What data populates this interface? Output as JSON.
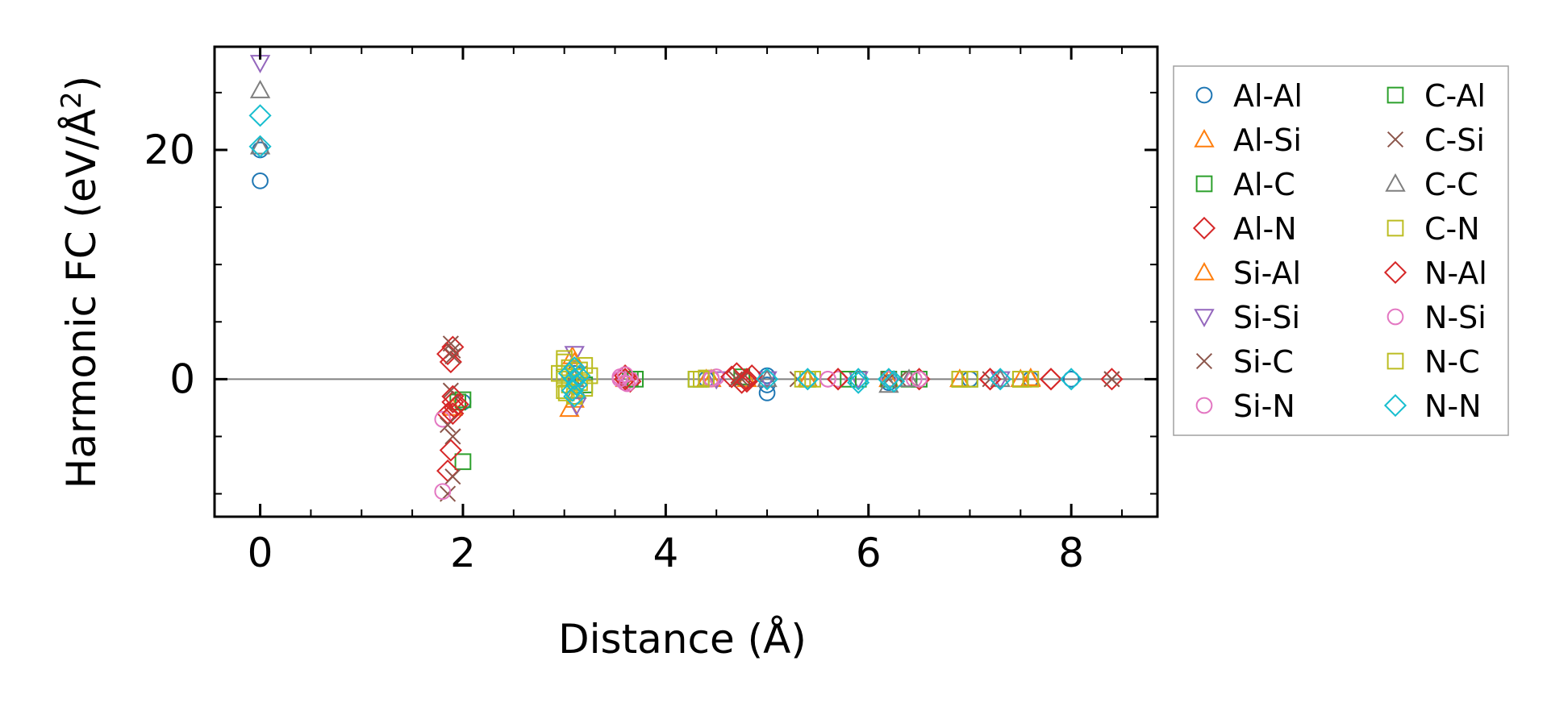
{
  "chart_data": {
    "type": "scatter",
    "title": "",
    "xlabel": "Distance (Å)",
    "ylabel_prefix": "Harmonic FC (eV/Å",
    "ylabel_sup": "2",
    "ylabel_suffix": ")",
    "xlim": [
      -0.45,
      8.85
    ],
    "ylim": [
      -12,
      29
    ],
    "xticks": [
      0,
      2,
      4,
      6,
      8
    ],
    "xtick_labels": [
      "0",
      "2",
      "4",
      "6",
      "8"
    ],
    "xminor": [
      0.5,
      1,
      1.5,
      2.5,
      3,
      3.5,
      4.5,
      5,
      5.5,
      6.5,
      7,
      7.5,
      8.5
    ],
    "yticks": [
      0,
      20
    ],
    "ytick_labels": [
      "0",
      "20"
    ],
    "yminor": [
      -10,
      -5,
      5,
      10,
      15,
      25
    ],
    "zero_line": 0,
    "legend_position": "right, outside",
    "series": [
      {
        "name": "Al-Al",
        "marker": "circle",
        "color": "#1f77b4",
        "points": [
          [
            0,
            17.3
          ],
          [
            0,
            20
          ],
          [
            2.0,
            -2.0
          ],
          [
            3.1,
            -1.5
          ],
          [
            3.1,
            0.5
          ],
          [
            4.4,
            0
          ],
          [
            5.0,
            -0.5
          ],
          [
            5.0,
            -1.2
          ],
          [
            5.0,
            0.3
          ],
          [
            5.4,
            0
          ],
          [
            6.2,
            0
          ],
          [
            6.2,
            -0.3
          ],
          [
            7.0,
            0
          ],
          [
            7.6,
            0
          ],
          [
            8.0,
            0
          ]
        ]
      },
      {
        "name": "Al-Si",
        "marker": "triangle-up",
        "color": "#ff7f0e",
        "points": [
          [
            1.9,
            -2.5
          ],
          [
            3.05,
            -2.6
          ],
          [
            3.1,
            1.5
          ],
          [
            3.6,
            0
          ],
          [
            4.4,
            0
          ],
          [
            4.8,
            0
          ],
          [
            5.4,
            0
          ],
          [
            6.2,
            0
          ],
          [
            6.9,
            0
          ],
          [
            7.6,
            0.1
          ],
          [
            7.5,
            0
          ]
        ]
      },
      {
        "name": "Al-C",
        "marker": "square",
        "color": "#2ca02c",
        "points": [
          [
            1.95,
            -2.0
          ],
          [
            2.0,
            -7.2
          ],
          [
            3.0,
            0.5
          ],
          [
            3.2,
            -0.5
          ],
          [
            3.65,
            0
          ],
          [
            4.35,
            0
          ],
          [
            4.75,
            0.2
          ],
          [
            5.4,
            0
          ],
          [
            5.9,
            0
          ],
          [
            6.2,
            0
          ],
          [
            6.5,
            0
          ],
          [
            6.9,
            0
          ],
          [
            7.5,
            0
          ]
        ]
      },
      {
        "name": "Al-N",
        "marker": "diamond",
        "color": "#d62728",
        "points": [
          [
            1.85,
            2.2
          ],
          [
            1.9,
            2.8
          ],
          [
            1.88,
            1.5
          ],
          [
            1.9,
            -2.0
          ],
          [
            1.85,
            -3.0
          ],
          [
            1.88,
            -6.2
          ],
          [
            1.92,
            -2.5
          ],
          [
            1.85,
            -8.0
          ],
          [
            3.6,
            0.3
          ],
          [
            3.65,
            -0.2
          ],
          [
            4.7,
            0.5
          ],
          [
            4.75,
            -0.3
          ],
          [
            4.8,
            0
          ],
          [
            5.7,
            0
          ],
          [
            6.5,
            0
          ],
          [
            7.2,
            0
          ],
          [
            7.8,
            0
          ],
          [
            8.4,
            0
          ]
        ]
      },
      {
        "name": "Si-Al",
        "marker": "triangle-up",
        "color": "#ff7f0e",
        "points": [
          [
            3.08,
            2.0
          ],
          [
            3.1,
            -1.8
          ],
          [
            4.45,
            0
          ],
          [
            5.4,
            0
          ],
          [
            6.9,
            0
          ],
          [
            7.6,
            0
          ]
        ]
      },
      {
        "name": "Si-Si",
        "marker": "triangle-down",
        "color": "#9467bd",
        "points": [
          [
            0,
            27.6
          ],
          [
            3.1,
            2.2
          ],
          [
            3.12,
            -2.3
          ],
          [
            4.5,
            0
          ],
          [
            5.0,
            0
          ],
          [
            5.9,
            0
          ],
          [
            7.3,
            0
          ]
        ]
      },
      {
        "name": "Si-C",
        "marker": "x",
        "color": "#8c564b",
        "points": [
          [
            1.88,
            3.1
          ],
          [
            1.9,
            2.0
          ],
          [
            1.88,
            -1.0
          ],
          [
            1.9,
            -5.0
          ],
          [
            1.85,
            -10.0
          ],
          [
            1.9,
            -8.5
          ],
          [
            3.1,
            0
          ],
          [
            4.7,
            0
          ],
          [
            5.3,
            0
          ],
          [
            6.2,
            0
          ],
          [
            7.2,
            0
          ],
          [
            8.4,
            0
          ]
        ]
      },
      {
        "name": "Si-N",
        "marker": "circle",
        "color": "#e377c2",
        "points": [
          [
            1.8,
            -3.5
          ],
          [
            1.8,
            -9.8
          ],
          [
            3.55,
            0.2
          ],
          [
            3.6,
            -0.3
          ],
          [
            3.65,
            0
          ],
          [
            4.45,
            0
          ],
          [
            4.5,
            0.2
          ],
          [
            5.6,
            0
          ],
          [
            6.45,
            0
          ],
          [
            5.7,
            0
          ]
        ]
      },
      {
        "name": "C-Al",
        "marker": "square",
        "color": "#2ca02c",
        "points": [
          [
            2.0,
            -1.8
          ],
          [
            3.7,
            0
          ],
          [
            4.3,
            0
          ],
          [
            5.8,
            0
          ],
          [
            6.4,
            0
          ],
          [
            7.0,
            0
          ]
        ]
      },
      {
        "name": "C-Si",
        "marker": "x",
        "color": "#8c564b",
        "points": [
          [
            1.9,
            2.5
          ],
          [
            1.85,
            -4.0
          ],
          [
            3.15,
            0.5
          ],
          [
            4.75,
            0
          ],
          [
            6.3,
            0
          ],
          [
            8.4,
            0
          ]
        ]
      },
      {
        "name": "C-C",
        "marker": "triangle-up",
        "color": "#7f7f7f",
        "points": [
          [
            0,
            25.2
          ],
          [
            0,
            20.3
          ],
          [
            3.1,
            0
          ],
          [
            3.12,
            -1.0
          ],
          [
            5.0,
            0
          ],
          [
            6.2,
            -0.5
          ],
          [
            6.4,
            0
          ],
          [
            7.3,
            0
          ]
        ]
      },
      {
        "name": "C-N",
        "marker": "square",
        "color": "#bcbd22",
        "points": [
          [
            3.0,
            1.5
          ],
          [
            3.05,
            1.0
          ],
          [
            2.95,
            0.5
          ],
          [
            3.0,
            0
          ],
          [
            3.05,
            -0.5
          ],
          [
            3.0,
            -1.0
          ],
          [
            3.1,
            -1.5
          ],
          [
            3.2,
            1.2
          ],
          [
            3.25,
            0.3
          ],
          [
            3.2,
            -0.8
          ],
          [
            3.15,
            0.8
          ],
          [
            4.3,
            0
          ],
          [
            4.4,
            0.1
          ],
          [
            5.35,
            0
          ],
          [
            5.45,
            0
          ],
          [
            6.9,
            0
          ],
          [
            7.0,
            0
          ],
          [
            7.5,
            0
          ],
          [
            7.6,
            0
          ]
        ]
      },
      {
        "name": "N-Al",
        "marker": "diamond",
        "color": "#d62728",
        "points": [
          [
            1.9,
            -1.5
          ],
          [
            1.95,
            -2.2
          ],
          [
            1.9,
            -3.0
          ],
          [
            3.6,
            0
          ],
          [
            4.65,
            0.2
          ],
          [
            4.8,
            -0.2
          ],
          [
            4.85,
            0.3
          ],
          [
            5.7,
            0
          ],
          [
            7.2,
            0
          ],
          [
            7.8,
            0
          ]
        ]
      },
      {
        "name": "N-Si",
        "marker": "circle",
        "color": "#e377c2",
        "points": [
          [
            3.55,
            0
          ],
          [
            3.6,
            0.4
          ],
          [
            3.62,
            -0.4
          ],
          [
            4.45,
            0.1
          ],
          [
            5.6,
            0
          ],
          [
            6.2,
            0
          ],
          [
            6.5,
            0
          ]
        ]
      },
      {
        "name": "N-C",
        "marker": "square",
        "color": "#bcbd22",
        "points": [
          [
            3.0,
            1.8
          ],
          [
            3.02,
            -1.2
          ],
          [
            3.1,
            0.2
          ],
          [
            3.15,
            -0.3
          ],
          [
            4.35,
            0
          ],
          [
            5.4,
            0
          ],
          [
            6.9,
            0
          ],
          [
            7.5,
            0
          ]
        ]
      },
      {
        "name": "N-N",
        "marker": "diamond",
        "color": "#17becf",
        "points": [
          [
            0,
            23.0
          ],
          [
            0,
            20.3
          ],
          [
            3.05,
            0.5
          ],
          [
            3.1,
            1.0
          ],
          [
            3.1,
            0
          ],
          [
            3.12,
            -0.5
          ],
          [
            3.08,
            -1.0
          ],
          [
            3.15,
            0.3
          ],
          [
            3.1,
            -1.5
          ],
          [
            5.0,
            0
          ],
          [
            5.4,
            0
          ],
          [
            5.9,
            0
          ],
          [
            5.9,
            -0.3
          ],
          [
            6.2,
            0
          ],
          [
            6.25,
            -0.2
          ],
          [
            7.3,
            0
          ],
          [
            8.0,
            0
          ]
        ]
      }
    ]
  }
}
